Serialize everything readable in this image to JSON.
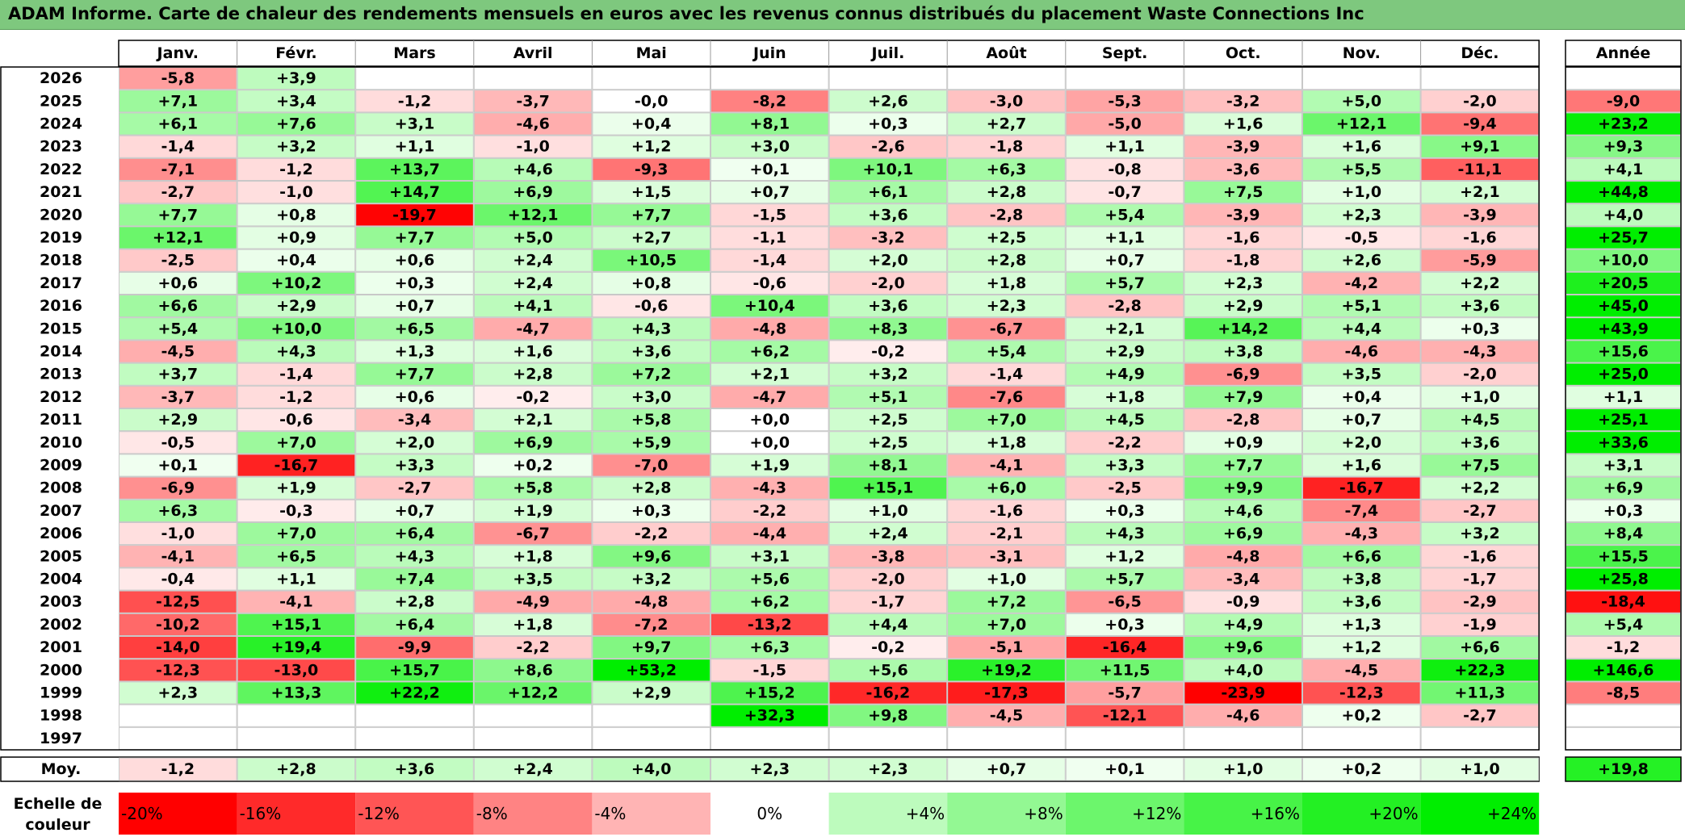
{
  "title": "ADAM Informe. Carte de chaleur des rendements mensuels en euros avec les revenus connus distribués du placement Waste Connections Inc",
  "chart_data": {
    "type": "heatmap",
    "months": [
      "Janv.",
      "Févr.",
      "Mars",
      "Avril",
      "Mai",
      "Juin",
      "Juil.",
      "Août",
      "Sept.",
      "Oct.",
      "Nov.",
      "Déc."
    ],
    "year_header": "Année",
    "years": [
      "2026",
      "2025",
      "2024",
      "2023",
      "2022",
      "2021",
      "2020",
      "2019",
      "2018",
      "2017",
      "2016",
      "2015",
      "2014",
      "2013",
      "2012",
      "2011",
      "2010",
      "2009",
      "2008",
      "2007",
      "2006",
      "2005",
      "2004",
      "2003",
      "2002",
      "2001",
      "2000",
      "1999",
      "1998",
      "1997"
    ],
    "values": [
      [
        "-5,8",
        "+3,9",
        "",
        "",
        "",
        "",
        "",
        "",
        "",
        "",
        "",
        ""
      ],
      [
        "+7,1",
        "+3,4",
        "-1,2",
        "-3,7",
        "-0,0",
        "-8,2",
        "+2,6",
        "-3,0",
        "-5,3",
        "-3,2",
        "+5,0",
        "-2,0"
      ],
      [
        "+6,1",
        "+7,6",
        "+3,1",
        "-4,6",
        "+0,4",
        "+8,1",
        "+0,3",
        "+2,7",
        "-5,0",
        "+1,6",
        "+12,1",
        "-9,4"
      ],
      [
        "-1,4",
        "+3,2",
        "+1,1",
        "-1,0",
        "+1,2",
        "+3,0",
        "-2,6",
        "-1,8",
        "+1,1",
        "-3,9",
        "+1,6",
        "+9,1"
      ],
      [
        "-7,1",
        "-1,2",
        "+13,7",
        "+4,6",
        "-9,3",
        "+0,1",
        "+10,1",
        "+6,3",
        "-0,8",
        "-3,6",
        "+5,5",
        "-11,1"
      ],
      [
        "-2,7",
        "-1,0",
        "+14,7",
        "+6,9",
        "+1,5",
        "+0,7",
        "+6,1",
        "+2,8",
        "-0,7",
        "+7,5",
        "+1,0",
        "+2,1"
      ],
      [
        "+7,7",
        "+0,8",
        "-19,7",
        "+12,1",
        "+7,7",
        "-1,5",
        "+3,6",
        "-2,8",
        "+5,4",
        "-3,9",
        "+2,3",
        "-3,9"
      ],
      [
        "+12,1",
        "+0,9",
        "+7,7",
        "+5,0",
        "+2,7",
        "-1,1",
        "-3,2",
        "+2,5",
        "+1,1",
        "-1,6",
        "-0,5",
        "-1,6"
      ],
      [
        "-2,5",
        "+0,4",
        "+0,6",
        "+2,4",
        "+10,5",
        "-1,4",
        "+2,0",
        "+2,8",
        "+0,7",
        "-1,8",
        "+2,6",
        "-5,9"
      ],
      [
        "+0,6",
        "+10,2",
        "+0,3",
        "+2,4",
        "+0,8",
        "-0,6",
        "-2,0",
        "+1,8",
        "+5,7",
        "+2,3",
        "-4,2",
        "+2,2"
      ],
      [
        "+6,6",
        "+2,9",
        "+0,7",
        "+4,1",
        "-0,6",
        "+10,4",
        "+3,6",
        "+2,3",
        "-2,8",
        "+2,9",
        "+5,1",
        "+3,6"
      ],
      [
        "+5,4",
        "+10,0",
        "+6,5",
        "-4,7",
        "+4,3",
        "-4,8",
        "+8,3",
        "-6,7",
        "+2,1",
        "+14,2",
        "+4,4",
        "+0,3"
      ],
      [
        "-4,5",
        "+4,3",
        "+1,3",
        "+1,6",
        "+3,6",
        "+6,2",
        "-0,2",
        "+5,4",
        "+2,9",
        "+3,8",
        "-4,6",
        "-4,3"
      ],
      [
        "+3,7",
        "-1,4",
        "+7,7",
        "+2,8",
        "+7,2",
        "+2,1",
        "+3,2",
        "-1,4",
        "+4,9",
        "-6,9",
        "+3,5",
        "-2,0"
      ],
      [
        "-3,7",
        "-1,2",
        "+0,6",
        "-0,2",
        "+3,0",
        "-4,7",
        "+5,1",
        "-7,6",
        "+1,8",
        "+7,9",
        "+0,4",
        "+1,0"
      ],
      [
        "+2,9",
        "-0,6",
        "-3,4",
        "+2,1",
        "+5,8",
        "+0,0",
        "+2,5",
        "+7,0",
        "+4,5",
        "-2,8",
        "+0,7",
        "+4,5"
      ],
      [
        "-0,5",
        "+7,0",
        "+2,0",
        "+6,9",
        "+5,9",
        "+0,0",
        "+2,5",
        "+1,8",
        "-2,2",
        "+0,9",
        "+2,0",
        "+3,6"
      ],
      [
        "+0,1",
        "-16,7",
        "+3,3",
        "+0,2",
        "-7,0",
        "+1,9",
        "+8,1",
        "-4,1",
        "+3,3",
        "+7,7",
        "+1,6",
        "+7,5"
      ],
      [
        "-6,9",
        "+1,9",
        "-2,7",
        "+5,8",
        "+2,8",
        "-4,3",
        "+15,1",
        "+6,0",
        "-2,5",
        "+9,9",
        "-16,7",
        "+2,2"
      ],
      [
        "+6,3",
        "-0,3",
        "+0,7",
        "+1,9",
        "+0,3",
        "-2,2",
        "+1,0",
        "-1,6",
        "+0,3",
        "+4,6",
        "-7,4",
        "-2,7"
      ],
      [
        "-1,0",
        "+7,0",
        "+6,4",
        "-6,7",
        "-2,2",
        "-4,4",
        "+2,4",
        "-2,1",
        "+4,3",
        "+6,9",
        "-4,3",
        "+3,2"
      ],
      [
        "-4,1",
        "+6,5",
        "+4,3",
        "+1,8",
        "+9,6",
        "+3,1",
        "-3,8",
        "-3,1",
        "+1,2",
        "-4,8",
        "+6,6",
        "-1,6"
      ],
      [
        "-0,4",
        "+1,1",
        "+7,4",
        "+3,5",
        "+3,2",
        "+5,6",
        "-2,0",
        "+1,0",
        "+5,7",
        "-3,4",
        "+3,8",
        "-1,7"
      ],
      [
        "-12,5",
        "-4,1",
        "+2,8",
        "-4,9",
        "-4,8",
        "+6,2",
        "-1,7",
        "+7,2",
        "-6,5",
        "-0,9",
        "+3,6",
        "-2,9"
      ],
      [
        "-10,2",
        "+15,1",
        "+6,4",
        "+1,8",
        "-7,2",
        "-13,2",
        "+4,4",
        "+7,0",
        "+0,3",
        "+4,9",
        "+1,3",
        "-1,9"
      ],
      [
        "-14,0",
        "+19,4",
        "-9,9",
        "-2,2",
        "+9,7",
        "+6,3",
        "-0,2",
        "-5,1",
        "-16,4",
        "+9,6",
        "+1,2",
        "+6,6"
      ],
      [
        "-12,3",
        "-13,0",
        "+15,7",
        "+8,6",
        "+53,2",
        "-1,5",
        "+5,6",
        "+19,2",
        "+11,5",
        "+4,0",
        "-4,5",
        "+22,3"
      ],
      [
        "+2,3",
        "+13,3",
        "+22,2",
        "+12,2",
        "+2,9",
        "+15,2",
        "-16,2",
        "-17,3",
        "-5,7",
        "-23,9",
        "-12,3",
        "+11,3"
      ],
      [
        "",
        "",
        "",
        "",
        "",
        "+32,3",
        "+9,8",
        "-4,5",
        "-12,1",
        "-4,6",
        "+0,2",
        "-2,7"
      ],
      [
        "",
        "",
        "",
        "",
        "",
        "",
        "",
        "",
        "",
        "",
        "",
        ""
      ]
    ],
    "year_totals": [
      "",
      "-9,0",
      "+23,2",
      "+9,3",
      "+4,1",
      "+44,8",
      "+4,0",
      "+25,7",
      "+10,0",
      "+20,5",
      "+45,0",
      "+43,9",
      "+15,6",
      "+25,0",
      "+1,1",
      "+25,1",
      "+33,6",
      "+3,1",
      "+6,9",
      "+0,3",
      "+8,4",
      "+15,5",
      "+25,8",
      "-18,4",
      "+5,4",
      "-1,2",
      "+146,6",
      "-8,5",
      "",
      ""
    ],
    "average_label": "Moy.",
    "averages": [
      "-1,2",
      "+2,8",
      "+3,6",
      "+2,4",
      "+4,0",
      "+2,3",
      "+2,3",
      "+0,7",
      "+0,1",
      "+1,0",
      "+0,2",
      "+1,0"
    ],
    "average_total": "+19,8",
    "scale_label_1": "Echelle de",
    "scale_label_2": "couleur",
    "scale": [
      "-20%",
      "-16%",
      "-12%",
      "-8%",
      "-4%",
      "0%",
      "+4%",
      "+8%",
      "+12%",
      "+16%",
      "+20%",
      "+24%"
    ],
    "colors": {
      "title_bg": "#7ec87e",
      "negative_max": "#ff0000",
      "positive_max": "#00ee00",
      "neutral": "#ffffff"
    }
  }
}
